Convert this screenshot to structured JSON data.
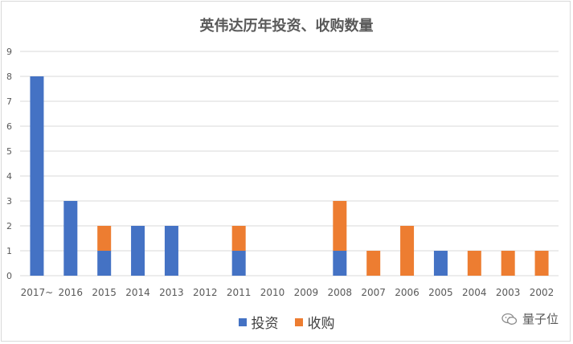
{
  "chart_data": {
    "type": "bar",
    "stacked": true,
    "title": "英伟达历年投资、收购数量",
    "categories": [
      "2017~",
      "2016",
      "2015",
      "2014",
      "2013",
      "2012",
      "2011",
      "2010",
      "2009",
      "2008",
      "2007",
      "2006",
      "2005",
      "2004",
      "2003",
      "2002"
    ],
    "series": [
      {
        "name": "投资",
        "color": "#4472C4",
        "values": [
          8,
          3,
          1,
          2,
          2,
          0,
          1,
          0,
          0,
          1,
          0,
          0,
          1,
          0,
          0,
          0
        ]
      },
      {
        "name": "收购",
        "color": "#ED7D31",
        "values": [
          0,
          0,
          1,
          0,
          0,
          0,
          1,
          0,
          0,
          2,
          1,
          2,
          0,
          1,
          1,
          1
        ]
      }
    ],
    "ylim": [
      0,
      9
    ],
    "yticks": [
      0,
      1,
      2,
      3,
      4,
      5,
      6,
      7,
      8,
      9
    ],
    "grid": true,
    "legend": "bottom-center"
  },
  "watermark": {
    "text": "量子位",
    "icon": "wechat-icon"
  }
}
